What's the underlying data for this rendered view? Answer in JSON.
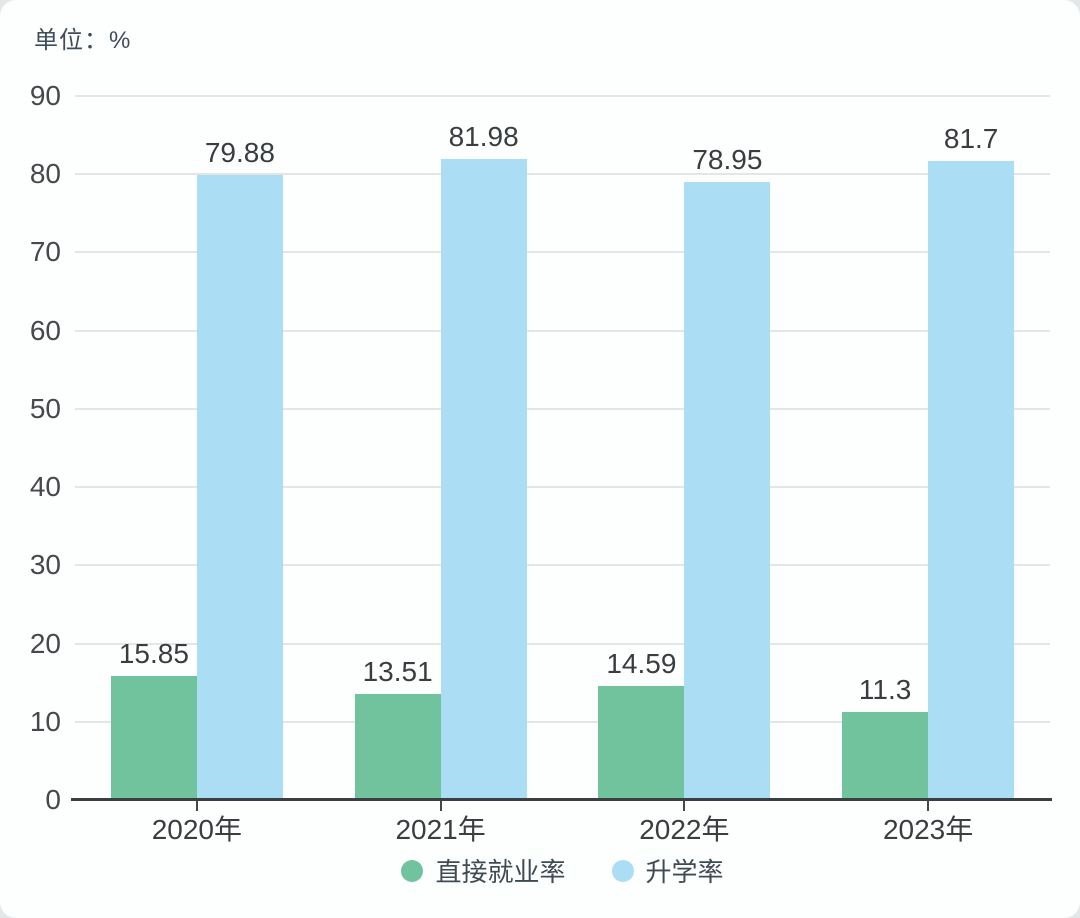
{
  "chart_data": {
    "type": "bar",
    "title": "",
    "unit_label": "单位：%",
    "categories": [
      "2020年",
      "2021年",
      "2022年",
      "2023年"
    ],
    "series": [
      {
        "name": "直接就业率",
        "color": "#70c39c",
        "values": [
          15.85,
          13.51,
          14.59,
          11.3
        ]
      },
      {
        "name": "升学率",
        "color": "#abdef4",
        "values": [
          79.88,
          81.98,
          78.95,
          81.7
        ]
      }
    ],
    "xlabel": "",
    "ylabel": "",
    "ylim": [
      0,
      90
    ],
    "yticks": [
      0,
      10,
      20,
      30,
      40,
      50,
      60,
      70,
      80,
      90
    ],
    "grid": true,
    "legend_position": "bottom",
    "value_labels": true
  },
  "colors": {
    "grid": "#e4e6e6",
    "axis": "#3a3f42",
    "tick_text": "#46494b",
    "value_text": "#3a3d3f",
    "legend_text": "#3e4a54",
    "unit_text": "#3e4d59",
    "card_background": "#fdfefe",
    "page_background": "#e4e7e7"
  }
}
